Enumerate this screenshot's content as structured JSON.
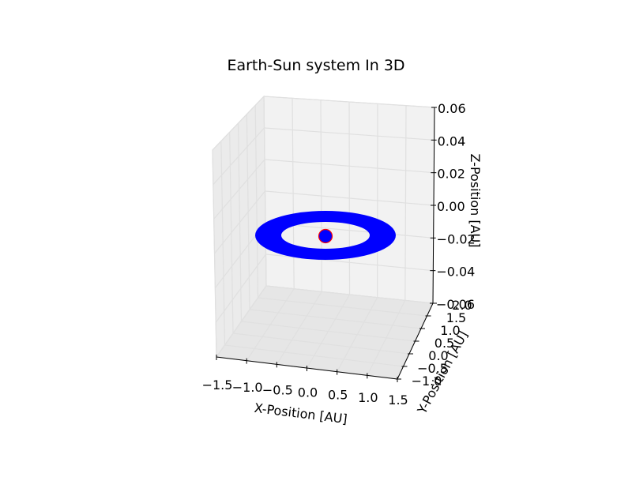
{
  "chart_data": {
    "type": "3d-line",
    "title": "Earth-Sun system In 3D",
    "xlabel": "X-Position [AU]",
    "ylabel": "Y-Position [AU]",
    "zlabel": "Z-Position [AU]",
    "xlim": [
      -1.5,
      1.5
    ],
    "ylim": [
      -1.0,
      2.0
    ],
    "zlim": [
      -0.06,
      0.06
    ],
    "x_ticks": [
      "−1.5",
      "−1.0",
      "−0.5",
      "0.0",
      "0.5",
      "1.0",
      "1.5"
    ],
    "y_ticks": [
      "−1.0",
      "−0.5",
      "0.0",
      "0.5",
      "1.0",
      "1.5",
      "2.0"
    ],
    "z_ticks": [
      "0.06",
      "0.04",
      "0.02",
      "0.00",
      "−0.02",
      "−0.04",
      "−0.06"
    ],
    "grid": true,
    "series": [
      {
        "kind": "orbit",
        "color": "#0000ff",
        "radius_min": 0.85,
        "radius_max": 1.15,
        "z": 0.0
      },
      {
        "kind": "point",
        "color": "#0000ff",
        "edge_color": "#ff0000",
        "x": 0.0,
        "y": 0.0,
        "z": 0.0
      }
    ]
  }
}
